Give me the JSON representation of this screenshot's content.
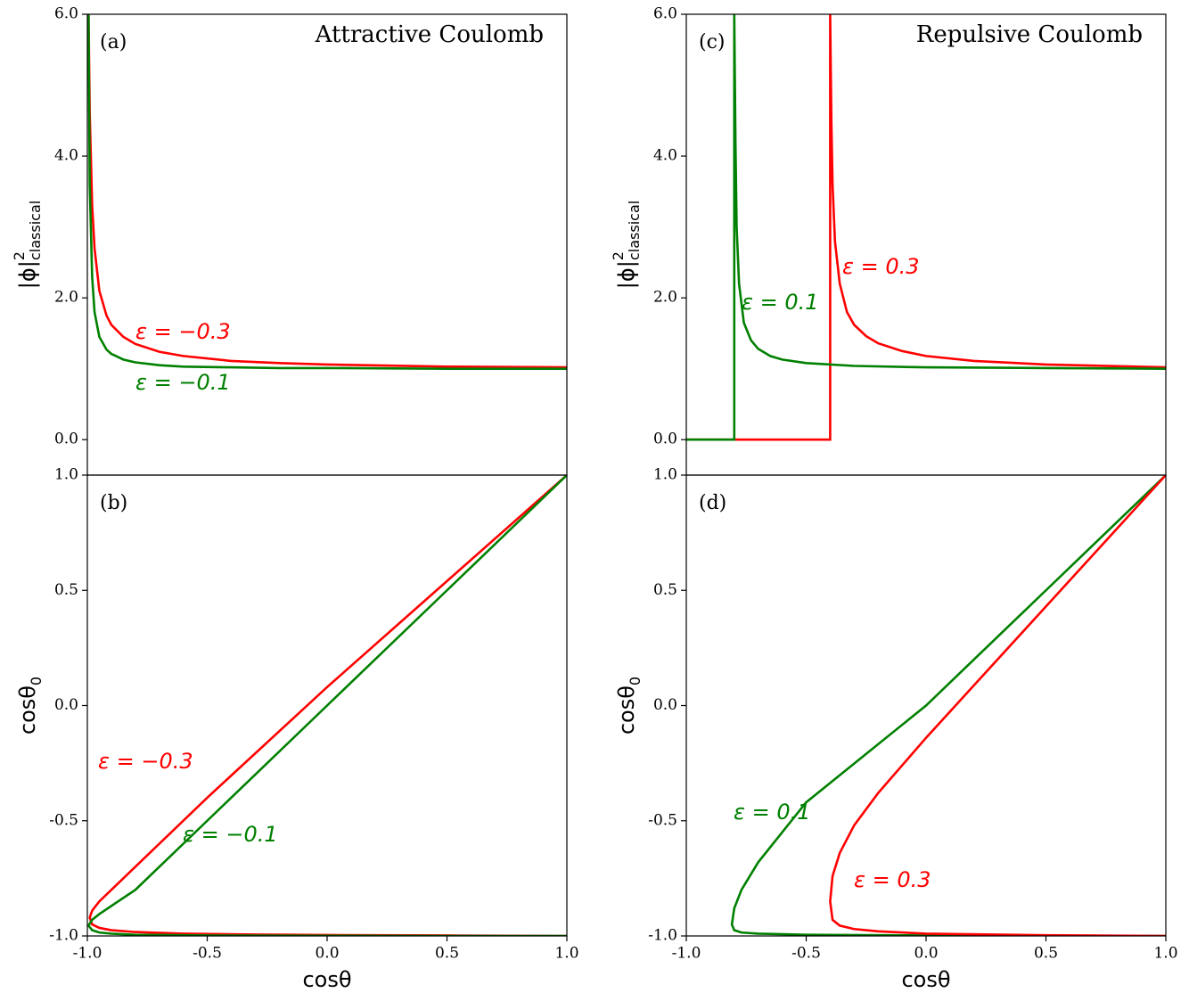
{
  "chart_data": [
    {
      "type": "line",
      "panel_label": "(a)",
      "title": "Attractive Coulomb",
      "y_label": [
        "|ϕ|",
        "2",
        "classical"
      ],
      "xlim": [
        -1,
        1
      ],
      "ylim": [
        -0.5,
        6
      ],
      "yticks": [
        {
          "value": 0,
          "label": "0.0"
        },
        {
          "value": 2,
          "label": "2.0"
        },
        {
          "value": 4,
          "label": "4.0"
        },
        {
          "value": 6,
          "label": "6.0"
        }
      ],
      "series": [
        {
          "name": "ε = −0.3",
          "color": "#ff0000",
          "x": [
            -0.995,
            -0.99,
            -0.98,
            -0.97,
            -0.95,
            -0.92,
            -0.9,
            -0.85,
            -0.8,
            -0.7,
            -0.6,
            -0.4,
            -0.2,
            0,
            0.5,
            1
          ],
          "values": [
            6,
            4.6,
            3.3,
            2.7,
            2.1,
            1.75,
            1.62,
            1.45,
            1.35,
            1.24,
            1.18,
            1.11,
            1.08,
            1.06,
            1.03,
            1.02
          ]
        },
        {
          "name": "ε = −0.1",
          "color": "#008000",
          "x": [
            -0.995,
            -0.99,
            -0.98,
            -0.97,
            -0.95,
            -0.92,
            -0.9,
            -0.85,
            -0.8,
            -0.7,
            -0.6,
            -0.4,
            -0.2,
            0,
            0.5,
            1
          ],
          "values": [
            6,
            3.6,
            2.3,
            1.8,
            1.45,
            1.27,
            1.21,
            1.13,
            1.09,
            1.05,
            1.03,
            1.02,
            1.01,
            1.01,
            1.0,
            1.0
          ]
        }
      ]
    },
    {
      "type": "line",
      "panel_label": "(b)",
      "x_label": "cosθ",
      "y_label": [
        "cosθ",
        "0"
      ],
      "xlim": [
        -1,
        1
      ],
      "ylim": [
        -1,
        1
      ],
      "xticks": [
        {
          "value": -1,
          "label": "-1.0"
        },
        -0.5,
        {
          "value": 0,
          "label": "0.0"
        },
        0.5,
        {
          "value": 1,
          "label": "1.0"
        }
      ],
      "yticks": [
        {
          "value": -1,
          "label": "-1.0"
        },
        -0.5,
        {
          "value": 0,
          "label": "0.0"
        },
        0.5,
        {
          "value": 1,
          "label": "1.0"
        }
      ],
      "series": [
        {
          "name": "ε = −0.3",
          "color": "#ff0000",
          "x": [
            1,
            0.5,
            0,
            -0.5,
            -0.8,
            -0.9,
            -0.95,
            -0.98,
            -0.99,
            -0.98,
            -0.95,
            -0.9,
            -0.8,
            -0.6,
            -0.3,
            0,
            0.5,
            1
          ],
          "values": [
            1,
            0.54,
            0.08,
            -0.4,
            -0.7,
            -0.8,
            -0.85,
            -0.89,
            -0.92,
            -0.95,
            -0.965,
            -0.975,
            -0.983,
            -0.99,
            -0.994,
            -0.996,
            -0.998,
            -1
          ]
        },
        {
          "name": "ε = −0.1",
          "color": "#008000",
          "x": [
            1,
            0.5,
            0,
            -0.5,
            -0.8,
            -0.9,
            -0.95,
            -0.98,
            -0.995,
            -0.98,
            -0.95,
            -0.9,
            -0.8,
            -0.5,
            0,
            0.5,
            1
          ],
          "values": [
            1,
            0.5,
            0.0,
            -0.5,
            -0.8,
            -0.87,
            -0.905,
            -0.93,
            -0.955,
            -0.975,
            -0.985,
            -0.99,
            -0.995,
            -0.998,
            -0.999,
            -1.0,
            -1.0
          ]
        }
      ]
    },
    {
      "type": "line",
      "panel_label": "(c)",
      "title": "Repulsive Coulomb",
      "y_label": [
        "|ϕ|",
        "2",
        "classical"
      ],
      "xlim": [
        -1,
        1
      ],
      "ylim": [
        -0.5,
        6
      ],
      "yticks": [
        {
          "value": 0,
          "label": "0.0"
        },
        {
          "value": 2,
          "label": "2.0"
        },
        {
          "value": 4,
          "label": "4.0"
        },
        {
          "value": 6,
          "label": "6.0"
        }
      ],
      "series": [
        {
          "name": "ε = 0.3",
          "color": "#ff0000",
          "x": [
            -1,
            -0.4,
            -0.4,
            -0.395,
            -0.39,
            -0.38,
            -0.36,
            -0.33,
            -0.3,
            -0.25,
            -0.2,
            -0.1,
            0,
            0.2,
            0.5,
            1
          ],
          "values": [
            0,
            0,
            6,
            4.5,
            3.6,
            2.8,
            2.2,
            1.8,
            1.62,
            1.46,
            1.36,
            1.25,
            1.18,
            1.11,
            1.06,
            1.02
          ]
        },
        {
          "name": "ε = 0.1",
          "color": "#008000",
          "x": [
            -1,
            -0.8,
            -0.8,
            -0.795,
            -0.79,
            -0.78,
            -0.76,
            -0.73,
            -0.7,
            -0.65,
            -0.6,
            -0.5,
            -0.3,
            0,
            0.5,
            1
          ],
          "values": [
            0,
            0,
            6,
            4.2,
            3.0,
            2.2,
            1.65,
            1.4,
            1.28,
            1.18,
            1.13,
            1.08,
            1.04,
            1.02,
            1.01,
            1.0
          ]
        }
      ]
    },
    {
      "type": "line",
      "panel_label": "(d)",
      "x_label": "cosθ",
      "y_label": [
        "cosθ",
        "0"
      ],
      "xlim": [
        -1,
        1
      ],
      "ylim": [
        -1,
        1
      ],
      "xticks": [
        {
          "value": -1,
          "label": "-1.0"
        },
        -0.5,
        {
          "value": 0,
          "label": "0.0"
        },
        0.5,
        {
          "value": 1,
          "label": "1.0"
        }
      ],
      "yticks": [
        {
          "value": -1,
          "label": "-1.0"
        },
        -0.5,
        {
          "value": 0,
          "label": "0.0"
        },
        0.5,
        {
          "value": 1,
          "label": "1.0"
        }
      ],
      "series": [
        {
          "name": "ε = 0.1",
          "color": "#008000",
          "x": [
            1,
            0.5,
            0,
            -0.5,
            -0.7,
            -0.77,
            -0.8,
            -0.81,
            -0.8,
            -0.77,
            -0.7,
            -0.5,
            0,
            0.5,
            1
          ],
          "values": [
            1,
            0.5,
            0.0,
            -0.42,
            -0.68,
            -0.8,
            -0.88,
            -0.95,
            -0.975,
            -0.985,
            -0.99,
            -0.995,
            -0.998,
            -0.999,
            -1
          ]
        },
        {
          "name": "ε = 0.3",
          "color": "#ff0000",
          "x": [
            1,
            0.5,
            0,
            -0.2,
            -0.3,
            -0.36,
            -0.39,
            -0.4,
            -0.39,
            -0.36,
            -0.3,
            -0.2,
            0,
            0.5,
            1
          ],
          "values": [
            1,
            0.43,
            -0.14,
            -0.38,
            -0.52,
            -0.64,
            -0.74,
            -0.85,
            -0.93,
            -0.955,
            -0.97,
            -0.98,
            -0.99,
            -0.997,
            -1
          ]
        }
      ]
    }
  ]
}
